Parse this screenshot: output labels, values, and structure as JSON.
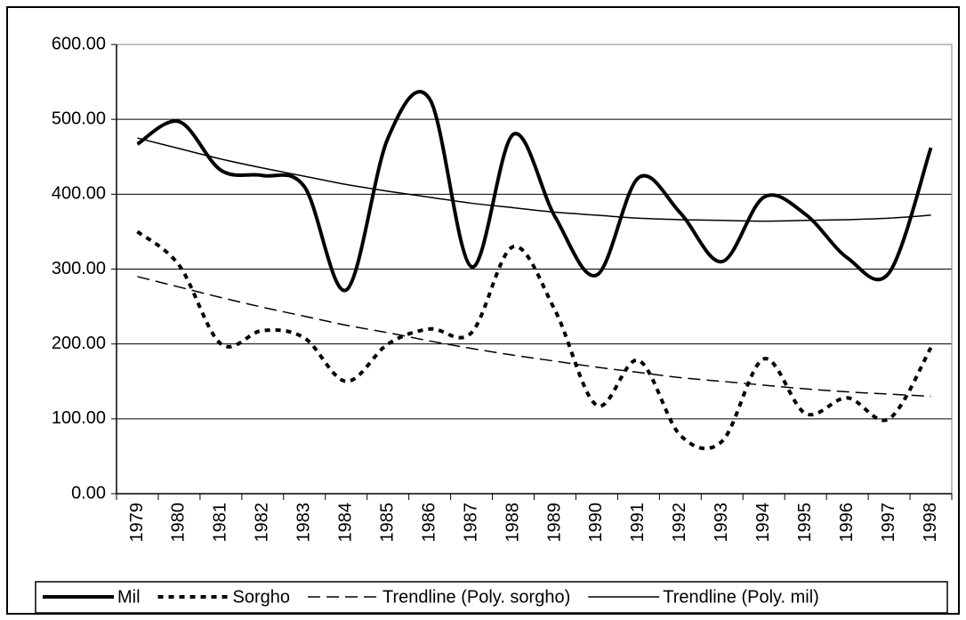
{
  "chart_data": {
    "type": "line",
    "categories": [
      "1979",
      "1980",
      "1981",
      "1982",
      "1983",
      "1984",
      "1985",
      "1986",
      "1987",
      "1988",
      "1989",
      "1990",
      "1991",
      "1992",
      "1993",
      "1994",
      "1995",
      "1996",
      "1997",
      "1998"
    ],
    "series": [
      {
        "name": "Mil",
        "color": "#000000",
        "width": 4,
        "dash": "none",
        "smooth": true,
        "values": [
          467,
          497,
          432,
          425,
          410,
          272,
          475,
          527,
          303,
          480,
          370,
          292,
          422,
          375,
          310,
          396,
          373,
          315,
          295,
          462
        ]
      },
      {
        "name": "Sorgho",
        "color": "#000000",
        "width": 4,
        "dash": "6,6",
        "smooth": true,
        "values": [
          350,
          305,
          200,
          218,
          208,
          150,
          200,
          220,
          215,
          330,
          245,
          118,
          178,
          78,
          70,
          180,
          107,
          128,
          100,
          195
        ]
      },
      {
        "name": "Trendline (Poly. sorgho)",
        "color": "#000000",
        "width": 1.5,
        "dash": "14,7",
        "smooth": true,
        "values": [
          290,
          276,
          262,
          249,
          237,
          225,
          215,
          204,
          194,
          185,
          177,
          169,
          162,
          155,
          150,
          145,
          140,
          136,
          133,
          130
        ]
      },
      {
        "name": "Trendline (Poly. mil)",
        "color": "#000000",
        "width": 1.5,
        "dash": "none",
        "smooth": true,
        "values": [
          475,
          461,
          447,
          435,
          424,
          413,
          404,
          396,
          388,
          382,
          376,
          372,
          368,
          366,
          365,
          364,
          365,
          366,
          368,
          372
        ]
      }
    ],
    "ylim": [
      0,
      600
    ],
    "yticks": [
      {
        "value": 0,
        "label": "0.00"
      },
      {
        "value": 100,
        "label": "100.00"
      },
      {
        "value": 200,
        "label": "200.00"
      },
      {
        "value": 300,
        "label": "300.00"
      },
      {
        "value": 400,
        "label": "400.00"
      },
      {
        "value": 500,
        "label": "500.00"
      },
      {
        "value": 600,
        "label": "600.00"
      }
    ],
    "grid": true,
    "legend": "bottom"
  }
}
